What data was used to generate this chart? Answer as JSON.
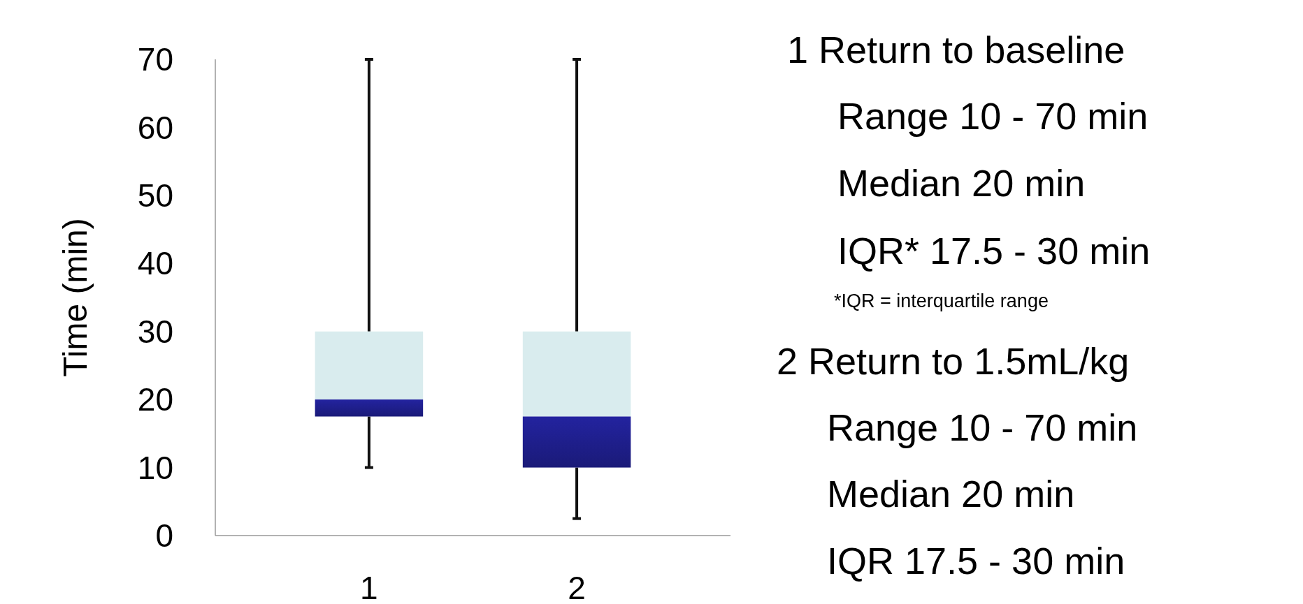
{
  "chart_data": {
    "type": "box",
    "ylabel": "Time (min)",
    "categories": [
      "1",
      "2"
    ],
    "boxes": [
      {
        "low": 10,
        "q1": 17.5,
        "median": 20,
        "q3": 30,
        "high": 70
      },
      {
        "low": 2.5,
        "q1": 10,
        "median": 17.5,
        "q3": 30,
        "high": 70
      }
    ],
    "colors": [
      "#23239f",
      "#d9ecee"
    ],
    "ylim": [
      0,
      70
    ],
    "yticks": [
      0,
      10,
      20,
      30,
      40,
      50,
      60,
      70
    ],
    "grid": false,
    "annotations": [
      "1 Return to baseline",
      "Range 10 - 70 min",
      "Median 20 min",
      "IQR* 17.5 - 30 min",
      "*IQR = interquartile range",
      "2 Return to 1.5mL/kg",
      "Range 10 - 70 min",
      "Median 20 min",
      "IQR 17.5 - 30 min"
    ]
  }
}
